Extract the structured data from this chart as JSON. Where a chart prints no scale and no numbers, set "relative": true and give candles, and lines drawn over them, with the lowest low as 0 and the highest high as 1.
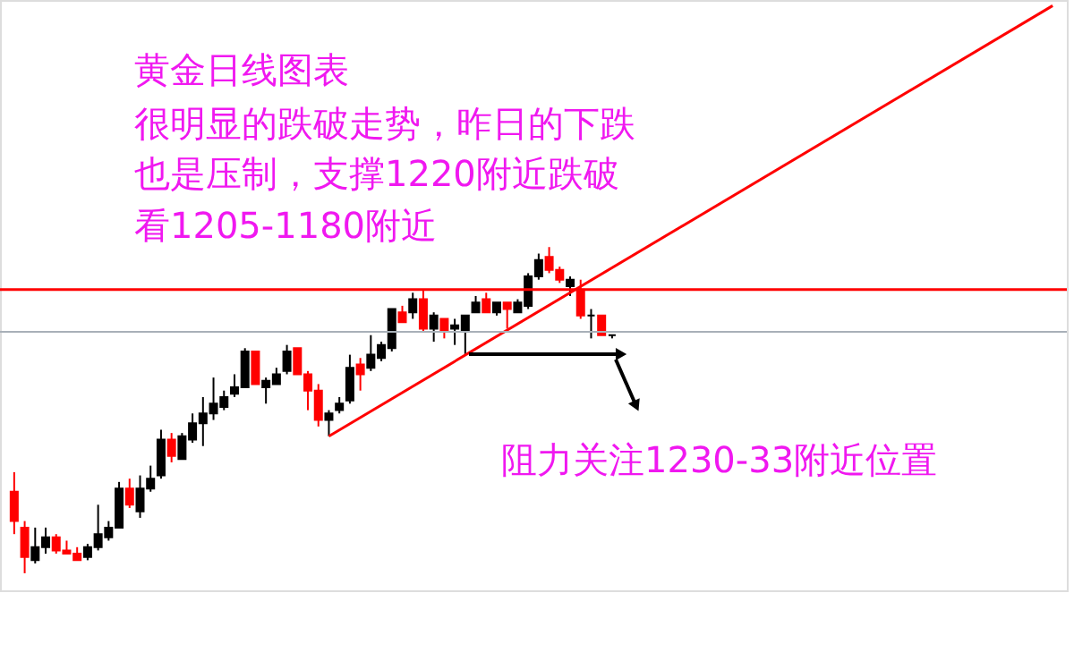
{
  "chart_data": {
    "type": "candlestick",
    "relative": true,
    "tick_labels": false,
    "title": "黄金日线图表",
    "annotations": [
      "很明显的跌破走势，昨日的下跌",
      "也是压制，支撑1220附近跌破",
      "看1205-1180附近",
      "阻力关注1230-33附近位置"
    ],
    "categories": [
      null,
      null,
      null,
      null,
      null,
      null,
      null,
      null,
      null,
      null,
      null,
      null,
      null,
      null,
      null,
      null,
      null,
      null,
      null,
      null,
      null,
      null,
      null,
      null,
      null,
      null,
      null,
      null,
      null,
      null,
      null,
      null,
      null,
      null,
      null,
      null,
      null,
      null,
      null,
      null,
      null,
      null,
      null,
      null,
      null,
      null,
      null,
      null,
      null,
      null,
      null,
      null,
      null,
      null,
      null,
      null,
      null,
      null,
      null,
      null,
      null,
      null,
      null,
      null,
      null,
      null,
      null,
      null,
      null,
      null,
      null,
      null,
      null,
      null,
      null,
      null,
      null,
      null,
      null,
      null,
      null,
      null,
      null,
      null,
      null,
      null,
      null,
      null,
      null,
      null,
      null,
      null,
      null,
      null,
      null,
      null,
      null,
      null,
      null,
      null
    ],
    "ohlc": [
      [
        0.25,
        0.31,
        0.12,
        0.16
      ],
      [
        0.14,
        0.16,
        0,
        0.05
      ],
      [
        0.04,
        0.14,
        0.03,
        0.08
      ],
      [
        0.08,
        0.14,
        0.06,
        0.11
      ],
      [
        0.11,
        0.12,
        0.06,
        0.07
      ],
      [
        0.07,
        0.1,
        0.06,
        0.06
      ],
      [
        0.06,
        0.08,
        0.04,
        0.04
      ],
      [
        0.05,
        0.09,
        0.04,
        0.08
      ],
      [
        0.08,
        0.21,
        0.07,
        0.12
      ],
      [
        0.11,
        0.16,
        0.1,
        0.14
      ],
      [
        0.14,
        0.28,
        0.14,
        0.26
      ],
      [
        0.26,
        0.29,
        0.2,
        0.21
      ],
      [
        0.19,
        0.3,
        0.17,
        0.26
      ],
      [
        0.26,
        0.33,
        0.25,
        0.29
      ],
      [
        0.3,
        0.44,
        0.29,
        0.41
      ],
      [
        0.41,
        0.43,
        0.34,
        0.36
      ],
      [
        0.35,
        0.43,
        0.35,
        0.42
      ],
      [
        0.41,
        0.49,
        0.4,
        0.46
      ],
      [
        0.46,
        0.54,
        0.39,
        0.49
      ],
      [
        0.49,
        0.6,
        0.47,
        0.52
      ],
      [
        0.51,
        0.56,
        0.5,
        0.54
      ],
      [
        0.55,
        0.61,
        0.54,
        0.57
      ],
      [
        0.57,
        0.69,
        0.57,
        0.68
      ],
      [
        0.68,
        0.68,
        0.58,
        0.58
      ],
      [
        0.57,
        0.6,
        0.52,
        0.59
      ],
      [
        0.58,
        0.63,
        0.58,
        0.61
      ],
      [
        0.62,
        0.7,
        0.61,
        0.68
      ],
      [
        0.69,
        0.69,
        0.61,
        0.61
      ],
      [
        0.61,
        0.62,
        0.5,
        0.56
      ],
      [
        0.56,
        0.58,
        0.45,
        0.47
      ],
      [
        0.47,
        0.5,
        0.42,
        0.49
      ],
      [
        0.5,
        0.54,
        0.49,
        0.52
      ],
      [
        0.53,
        0.67,
        0.52,
        0.63
      ],
      [
        0.64,
        0.66,
        0.56,
        0.61
      ],
      [
        0.63,
        0.73,
        0.62,
        0.67
      ],
      [
        0.66,
        0.71,
        0.65,
        0.7
      ],
      [
        0.69,
        0.81,
        0.68,
        0.81
      ],
      [
        0.8,
        0.82,
        0.77,
        0.77
      ],
      [
        0.8,
        0.86,
        0.78,
        0.84
      ],
      [
        0.84,
        0.87,
        0.74,
        0.75
      ],
      [
        0.75,
        0.8,
        0.71,
        0.79
      ],
      [
        0.78,
        0.78,
        0.72,
        0.74
      ],
      [
        0.75,
        0.78,
        0.7,
        0.76
      ],
      [
        0.74,
        0.79,
        0.67,
        0.79
      ],
      [
        0.8,
        0.85,
        0.8,
        0.83
      ],
      [
        0.84,
        0.86,
        0.8,
        0.8
      ],
      [
        0.8,
        0.83,
        0.79,
        0.83
      ],
      [
        0.83,
        0.83,
        0.75,
        0.81
      ],
      [
        0.8,
        0.84,
        0.8,
        0.83
      ],
      [
        0.82,
        0.92,
        0.81,
        0.91
      ],
      [
        0.91,
        0.98,
        0.9,
        0.96
      ],
      [
        0.97,
        1,
        0.92,
        0.93
      ],
      [
        0.93,
        0.94,
        0.89,
        0.9
      ],
      [
        0.88,
        0.91,
        0.85,
        0.9
      ],
      [
        0.87,
        0.9,
        0.78,
        0.79
      ],
      [
        0.79,
        0.81,
        0.72,
        0.79
      ],
      [
        0.79,
        0.79,
        0.73,
        0.73
      ],
      [
        0.73,
        0.73,
        0.72,
        0.73
      ],
      null,
      null,
      null,
      null,
      null,
      null,
      null,
      null,
      null,
      null,
      null,
      null,
      null,
      null,
      null,
      null,
      null,
      null,
      null,
      null,
      null,
      null,
      null,
      null,
      null,
      null,
      null,
      null,
      null,
      null,
      null,
      null,
      null,
      null,
      null,
      null,
      null,
      null,
      null,
      null,
      null,
      null
    ],
    "colors": [
      "#ff0000",
      "#ff0000",
      "#000000",
      "#000000",
      "#ff0000",
      "#ff0000",
      "#ff0000",
      "#000000",
      "#000000",
      "#000000",
      "#000000",
      "#ff0000",
      "#000000",
      "#000000",
      "#000000",
      "#ff0000",
      "#000000",
      "#000000",
      "#000000",
      "#000000",
      "#000000",
      "#000000",
      "#000000",
      "#ff0000",
      "#000000",
      "#000000",
      "#000000",
      "#ff0000",
      "#ff0000",
      "#ff0000",
      "#000000",
      "#000000",
      "#000000",
      "#ff0000",
      "#000000",
      "#000000",
      "#000000",
      "#ff0000",
      "#000000",
      "#ff0000",
      "#000000",
      "#ff0000",
      "#000000",
      "#000000",
      "#000000",
      "#ff0000",
      "#000000",
      "#ff0000",
      "#000000",
      "#000000",
      "#000000",
      "#ff0000",
      "#ff0000",
      "#000000",
      "#ff0000",
      "#000000",
      "#ff0000",
      "#000000",
      null,
      null,
      null,
      null,
      null,
      null,
      null,
      null,
      null,
      null,
      null,
      null,
      null,
      null,
      null,
      null,
      null,
      null,
      null,
      null,
      null,
      null,
      null,
      null,
      null,
      null,
      null,
      null,
      null,
      null,
      null,
      null,
      null,
      null,
      null,
      null,
      null,
      null,
      null,
      null,
      null,
      null
    ],
    "series": [
      {
        "type": "line",
        "color": "#ff0000",
        "values": [
          null,
          null,
          null,
          null,
          null,
          null,
          null,
          null,
          null,
          null,
          null,
          null,
          null,
          null,
          null,
          null,
          null,
          null,
          null,
          null,
          null,
          null,
          null,
          null,
          null,
          null,
          null,
          null,
          null,
          null,
          0.42,
          null,
          null,
          null,
          null,
          null,
          null,
          null,
          null,
          null,
          null,
          null,
          null,
          null,
          null,
          null,
          null,
          null,
          null,
          null,
          null,
          null,
          null,
          null,
          null,
          null,
          null,
          null,
          null,
          null,
          null,
          null,
          null,
          null,
          null,
          null,
          null,
          null,
          null,
          null,
          null,
          null,
          null,
          null,
          null,
          null,
          null,
          null,
          null,
          null,
          null,
          null,
          null,
          null,
          null,
          null,
          null,
          null,
          null,
          null,
          null,
          null,
          null,
          null,
          null,
          null,
          null,
          null,
          null,
          1.74
        ]
      }
    ],
    "ref_lines": [
      {
        "axis": "y",
        "value": 0.87,
        "color": "#ff0000"
      },
      {
        "axis": "y",
        "value": 0.74,
        "color": "#a8b0b8"
      }
    ]
  }
}
